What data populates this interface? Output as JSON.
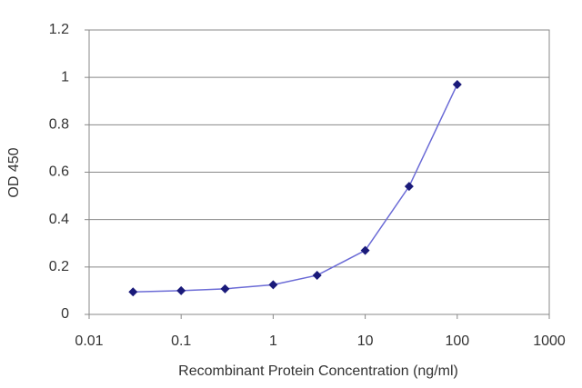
{
  "chart_data": {
    "type": "line",
    "x_label": "Recombinant Protein Concentration (ng/ml)",
    "y_label": "OD 450",
    "x": [
      0.03,
      0.1,
      0.3,
      1,
      3,
      10,
      30,
      100
    ],
    "series": [
      {
        "color": "#6b6bd6",
        "marker_color": "#1a1a7a",
        "values": [
          0.095,
          0.1,
          0.108,
          0.125,
          0.165,
          0.27,
          0.54,
          0.97
        ]
      }
    ],
    "xscale": "log",
    "xlim": [
      0.01,
      1000
    ],
    "xticks": [
      0.01,
      0.1,
      1,
      10,
      100,
      1000
    ],
    "ylim": [
      0,
      1.2
    ],
    "yticks": [
      0,
      0.2,
      0.4,
      0.6,
      0.8,
      1,
      1.2
    ],
    "grid": true
  }
}
